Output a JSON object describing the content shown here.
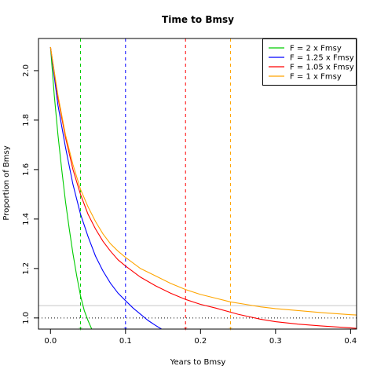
{
  "chart_data": {
    "type": "line",
    "title": "Time to Bmsy",
    "xlabel": "Years to Bmsy",
    "ylabel": "Proportion of Bmsy",
    "xlim": [
      -0.016,
      0.408
    ],
    "ylim": [
      0.955,
      2.13
    ],
    "x_ticks": [
      "0.0",
      "0.1",
      "0.2",
      "0.3",
      "0.4"
    ],
    "y_ticks": [
      "1.0",
      "1.2",
      "1.4",
      "1.6",
      "1.8",
      "2.0"
    ],
    "legend_position": "top-right",
    "legend_entries": [
      "F = 2 x Fmsy",
      "F = 1.25 x Fmsy",
      "F = 1.05 x Fmsy",
      "F = 1 x Fmsy"
    ],
    "series": [
      {
        "name": "F = 2 x Fmsy",
        "color": "#00cc00",
        "crossing_x": 0.04,
        "x": [
          0,
          0.005,
          0.01,
          0.015,
          0.02,
          0.025,
          0.03,
          0.035,
          0.04,
          0.045,
          0.05,
          0.055
        ],
        "y": [
          2.095,
          1.9,
          1.74,
          1.6,
          1.47,
          1.36,
          1.26,
          1.17,
          1.09,
          1.03,
          0.99,
          0.955
        ]
      },
      {
        "name": "F = 1.25 x Fmsy",
        "color": "#0000ff",
        "crossing_x": 0.1,
        "x": [
          0,
          0.01,
          0.02,
          0.03,
          0.04,
          0.05,
          0.06,
          0.07,
          0.08,
          0.09,
          0.1,
          0.11,
          0.12,
          0.13,
          0.14,
          0.148
        ],
        "y": [
          2.095,
          1.86,
          1.69,
          1.54,
          1.42,
          1.33,
          1.25,
          1.19,
          1.14,
          1.1,
          1.07,
          1.04,
          1.015,
          0.99,
          0.97,
          0.955
        ]
      },
      {
        "name": "F = 1.05 x Fmsy",
        "color": "#ff0000",
        "crossing_x": 0.18,
        "x": [
          0,
          0.01,
          0.02,
          0.03,
          0.04,
          0.05,
          0.06,
          0.07,
          0.08,
          0.09,
          0.1,
          0.12,
          0.14,
          0.16,
          0.18,
          0.2,
          0.22,
          0.25,
          0.28,
          0.3,
          0.33,
          0.36,
          0.4,
          0.408
        ],
        "y": [
          2.095,
          1.89,
          1.73,
          1.6,
          1.5,
          1.42,
          1.36,
          1.31,
          1.27,
          1.235,
          1.21,
          1.165,
          1.13,
          1.1,
          1.075,
          1.055,
          1.04,
          1.015,
          0.995,
          0.985,
          0.975,
          0.968,
          0.96,
          0.958
        ]
      },
      {
        "name": "F = 1 x Fmsy",
        "color": "#ffa500",
        "crossing_x": 0.24,
        "x": [
          0,
          0.01,
          0.02,
          0.03,
          0.04,
          0.05,
          0.06,
          0.07,
          0.08,
          0.09,
          0.1,
          0.12,
          0.14,
          0.16,
          0.18,
          0.2,
          0.22,
          0.24,
          0.26,
          0.28,
          0.3,
          0.33,
          0.36,
          0.4,
          0.408
        ],
        "y": [
          2.095,
          1.9,
          1.74,
          1.62,
          1.52,
          1.45,
          1.39,
          1.34,
          1.3,
          1.27,
          1.245,
          1.2,
          1.17,
          1.14,
          1.115,
          1.095,
          1.08,
          1.065,
          1.055,
          1.045,
          1.038,
          1.03,
          1.022,
          1.013,
          1.012
        ]
      }
    ],
    "reference_lines": {
      "dotted_y": 1.0,
      "gray_y": 1.05
    }
  }
}
